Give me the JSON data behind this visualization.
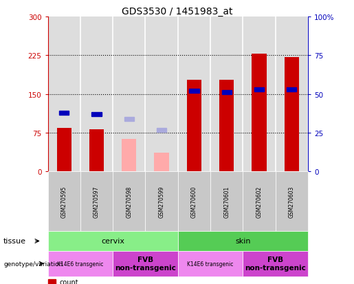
{
  "title": "GDS3530 / 1451983_at",
  "samples": [
    "GSM270595",
    "GSM270597",
    "GSM270598",
    "GSM270599",
    "GSM270600",
    "GSM270601",
    "GSM270602",
    "GSM270603"
  ],
  "count_values": [
    85,
    82,
    null,
    null,
    178,
    178,
    228,
    222
  ],
  "rank_values": [
    38,
    37,
    null,
    null,
    52,
    51,
    53,
    53
  ],
  "absent_value_values": [
    null,
    null,
    63,
    37,
    null,
    null,
    null,
    null
  ],
  "absent_rank_values": [
    null,
    null,
    34,
    27,
    null,
    null,
    null,
    null
  ],
  "ylim_left": [
    0,
    300
  ],
  "ylim_right": [
    0,
    100
  ],
  "yticks_left": [
    0,
    75,
    150,
    225,
    300
  ],
  "yticks_right": [
    0,
    25,
    50,
    75,
    100
  ],
  "ytick_labels_left": [
    "0",
    "75",
    "150",
    "225",
    "300"
  ],
  "ytick_labels_right": [
    "0",
    "25",
    "50",
    "75",
    "100%"
  ],
  "grid_lines": [
    75,
    150,
    225
  ],
  "color_count": "#cc0000",
  "color_rank": "#0000bb",
  "color_absent_value": "#ffaaaa",
  "color_absent_rank": "#aaaadd",
  "color_cervix": "#88ee88",
  "color_skin": "#55cc55",
  "color_k14e6": "#ee88ee",
  "color_fvb": "#cc44cc",
  "color_axis_left": "#cc0000",
  "color_axis_right": "#0000bb",
  "background_color": "#ffffff",
  "plot_bg": "#dddddd",
  "sep_color": "#ffffff"
}
